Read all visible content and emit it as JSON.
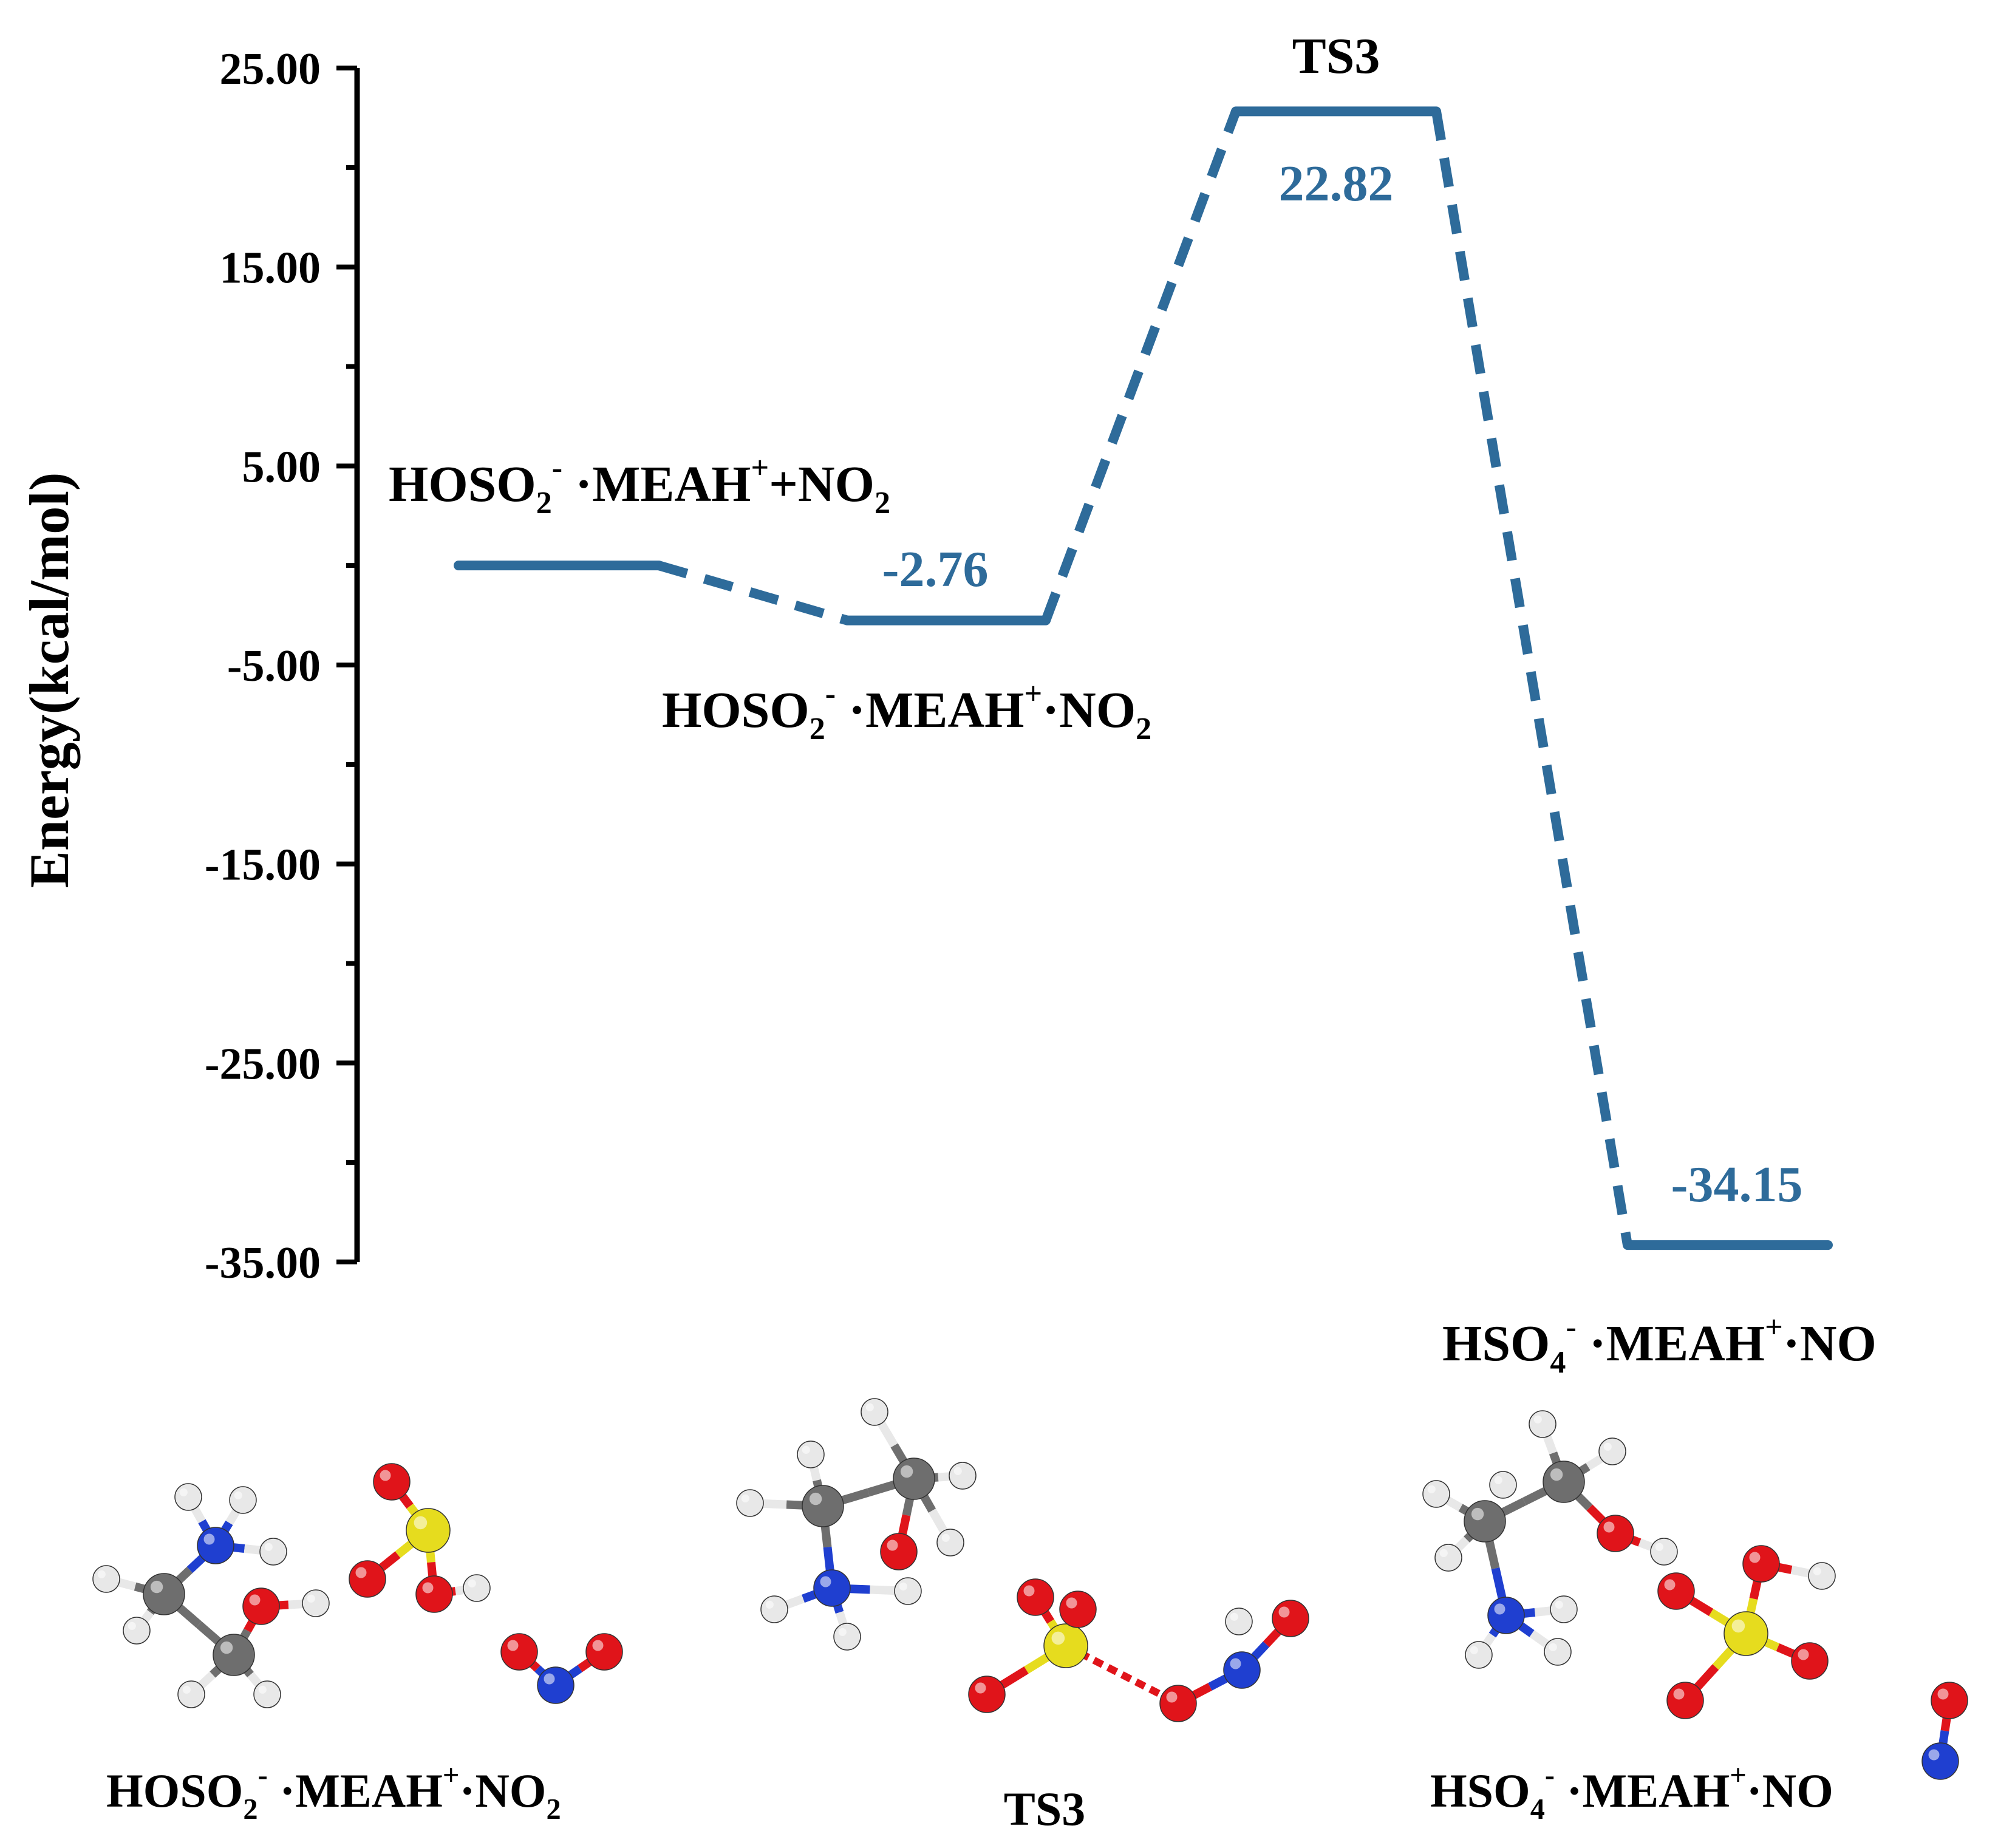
{
  "chart_data": {
    "type": "line",
    "subtype": "reaction energy profile",
    "ylabel": "Energy(kcal/mol)",
    "ylim": [
      -35,
      25
    ],
    "yticks": [
      "25.00",
      "15.00",
      "5.00",
      "-5.00",
      "-15.00",
      "-25.00",
      "-35.00"
    ],
    "minor_ticks": true,
    "grid": false,
    "line_color": "#2e6b9a",
    "states": [
      {
        "name": "HOSO2- ·MEAH+ + NO2",
        "value": 0.0,
        "value_label": ""
      },
      {
        "name": "HOSO2- ·MEAH+ ·NO2",
        "value": -2.76,
        "value_label": "-2.76"
      },
      {
        "name": "TS3",
        "value": 22.82,
        "value_label": "22.82"
      },
      {
        "name": "HSO4- ·MEAH+ ·NO",
        "value": -34.15,
        "value_label": "-34.15"
      }
    ]
  },
  "labels": {
    "reactant": {
      "a": "HOSO",
      "a_sub": "2",
      "a_sup": "-",
      "b": " ·MEAH",
      "b_sup": "+",
      "c": "+NO",
      "c_sub": "2"
    },
    "complex": {
      "a": "HOSO",
      "a_sub": "2",
      "a_sup": "-",
      "b": " ·MEAH",
      "b_sup": "+",
      "c": "·NO",
      "c_sub": "2"
    },
    "ts": "TS3",
    "product": {
      "a": "HSO",
      "a_sub": "4",
      "a_sup": "-",
      "b": " ·MEAH",
      "b_sup": "+",
      "c": "·NO"
    }
  },
  "structures": [
    {
      "caption": {
        "a": "HOSO",
        "a_sub": "2",
        "a_sup": "-",
        "b": " ·MEAH",
        "b_sup": "+",
        "c": "·NO",
        "c_sub": "2"
      }
    },
    {
      "caption_text": "TS3"
    },
    {
      "caption": {
        "a": "HSO",
        "a_sub": "4",
        "a_sup": "-",
        "b": " ·MEAH",
        "b_sup": "+",
        "c": "·NO"
      }
    }
  ],
  "atom_colors": {
    "C": "#6e6e6e",
    "H": "#e8e8e8",
    "O": "#e0141a",
    "N": "#1f3fd0",
    "S": "#e6dc1e"
  }
}
